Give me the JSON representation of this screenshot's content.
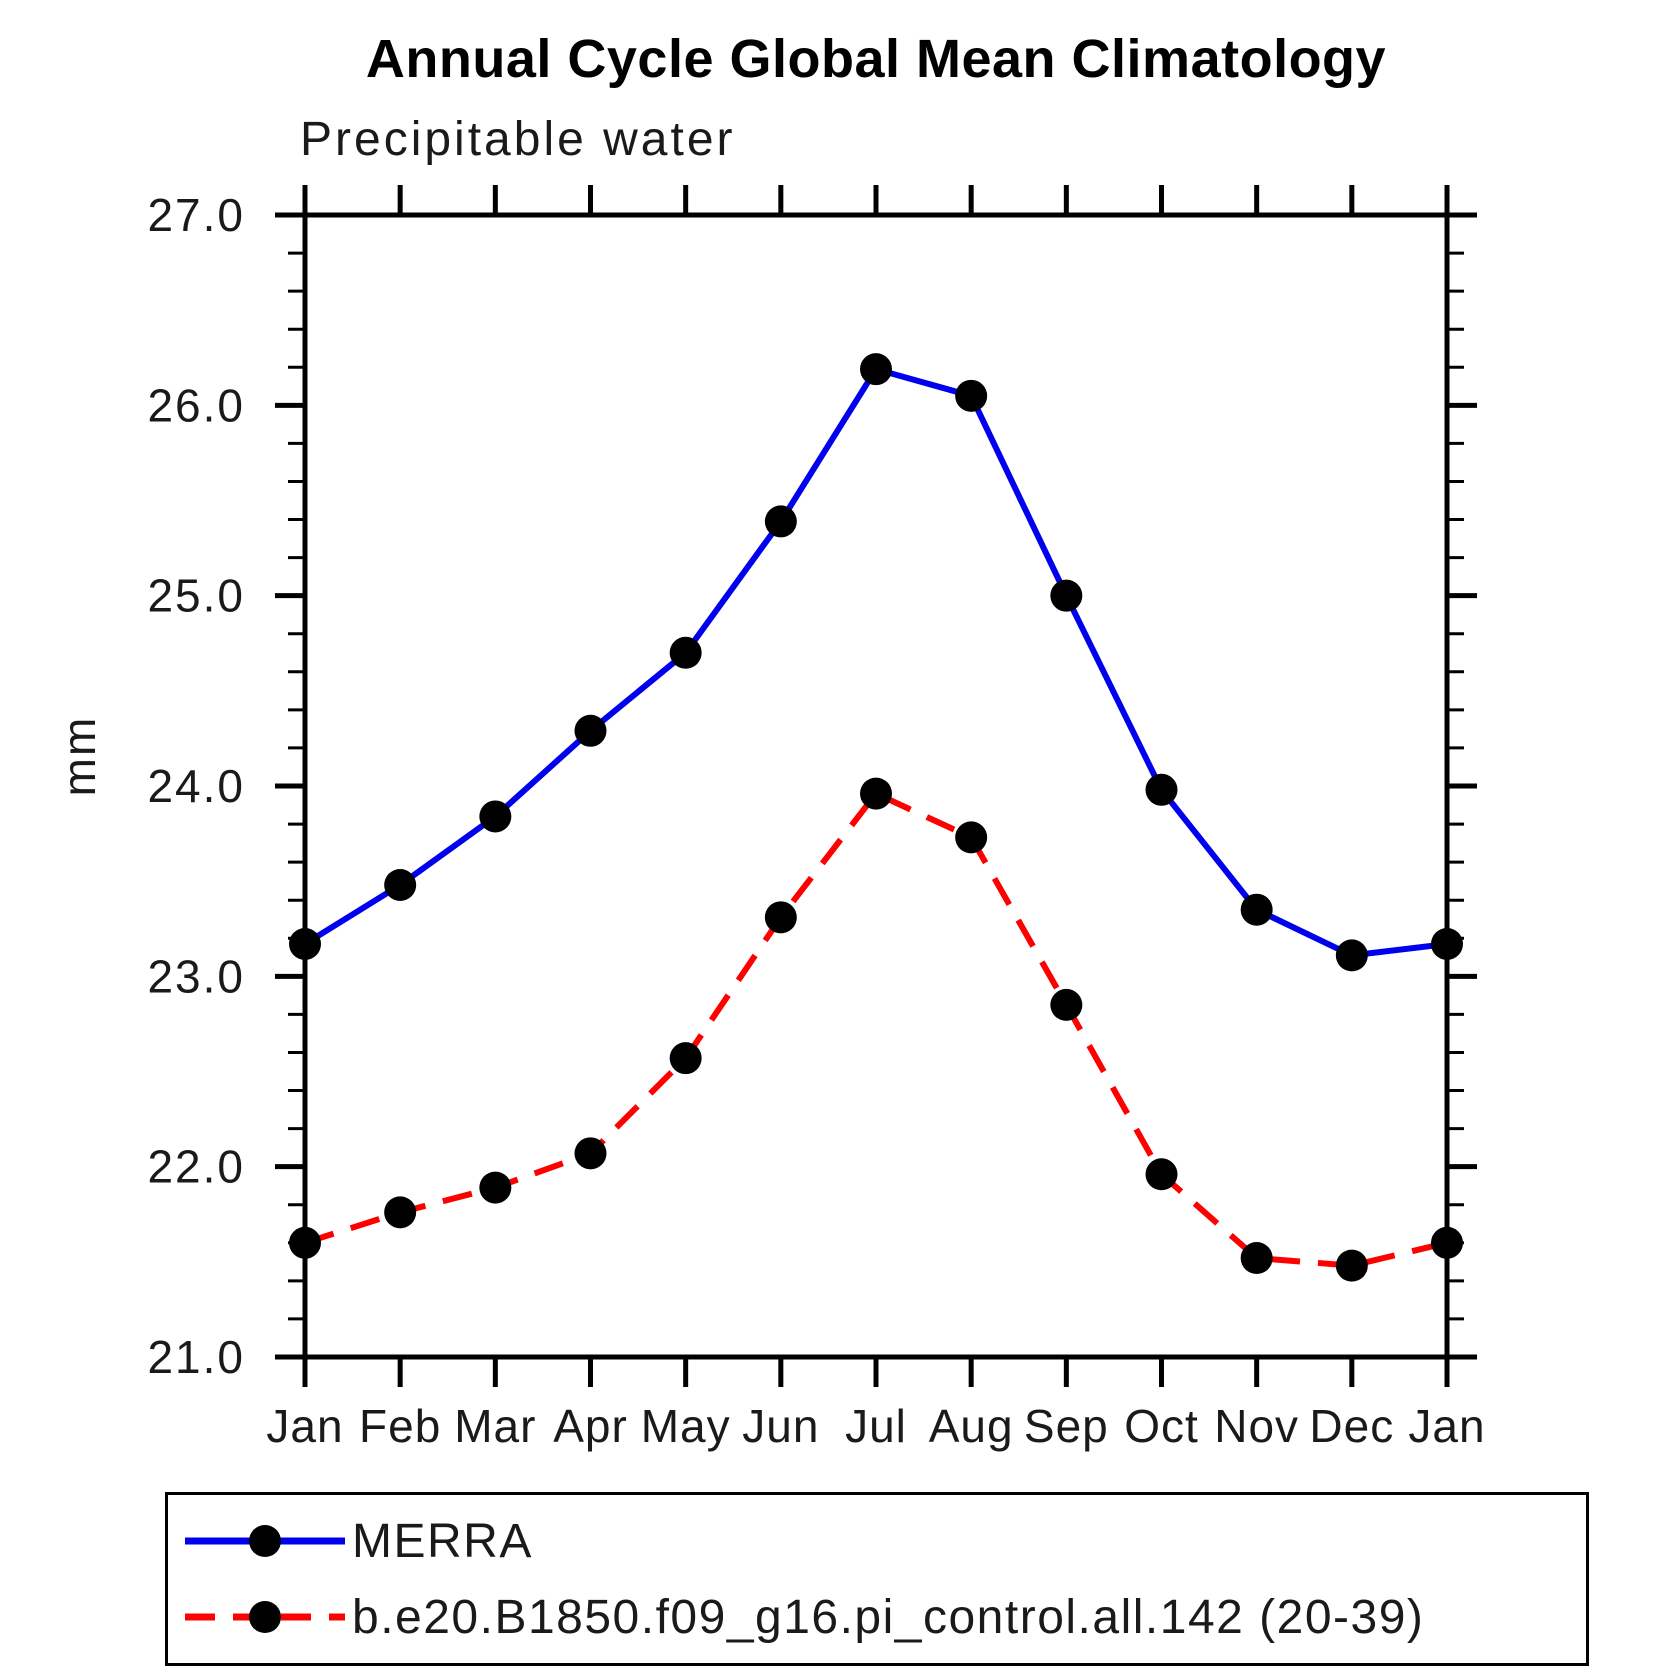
{
  "page": {
    "background_color": "#ffffff"
  },
  "chart_data": {
    "type": "line",
    "title": "Annual Cycle Global Mean Climatology",
    "subtitle": "Precipitable water",
    "xlabel": "",
    "ylabel": "mm",
    "categories": [
      "Jan",
      "Feb",
      "Mar",
      "Apr",
      "May",
      "Jun",
      "Jul",
      "Aug",
      "Sep",
      "Oct",
      "Nov",
      "Dec",
      "Jan"
    ],
    "series": [
      {
        "name": "MERRA",
        "color": "#0000ee",
        "line_style": "solid",
        "marker": "filled-circle",
        "marker_color": "#000000",
        "values": [
          23.17,
          23.48,
          23.84,
          24.29,
          24.7,
          25.39,
          26.19,
          26.05,
          25.0,
          23.98,
          23.35,
          23.11,
          23.17
        ]
      },
      {
        "name": "b.e20.B1850.f09_g16.pi_control.all.142 (20-39)",
        "color": "#ff0000",
        "line_style": "dashed",
        "marker": "filled-circle",
        "marker_color": "#000000",
        "values": [
          21.6,
          21.76,
          21.89,
          22.07,
          22.57,
          23.31,
          23.96,
          23.73,
          22.85,
          21.96,
          21.52,
          21.48,
          21.6
        ]
      }
    ],
    "ylim": [
      21.0,
      27.0
    ],
    "ytick_step": 1.0,
    "yminor_step": 0.2,
    "ytick_labels": [
      "21.0",
      "22.0",
      "23.0",
      "24.0",
      "25.0",
      "26.0",
      "27.0"
    ],
    "grid": false,
    "legend_position": "bottom",
    "axis_color": "#000000"
  }
}
